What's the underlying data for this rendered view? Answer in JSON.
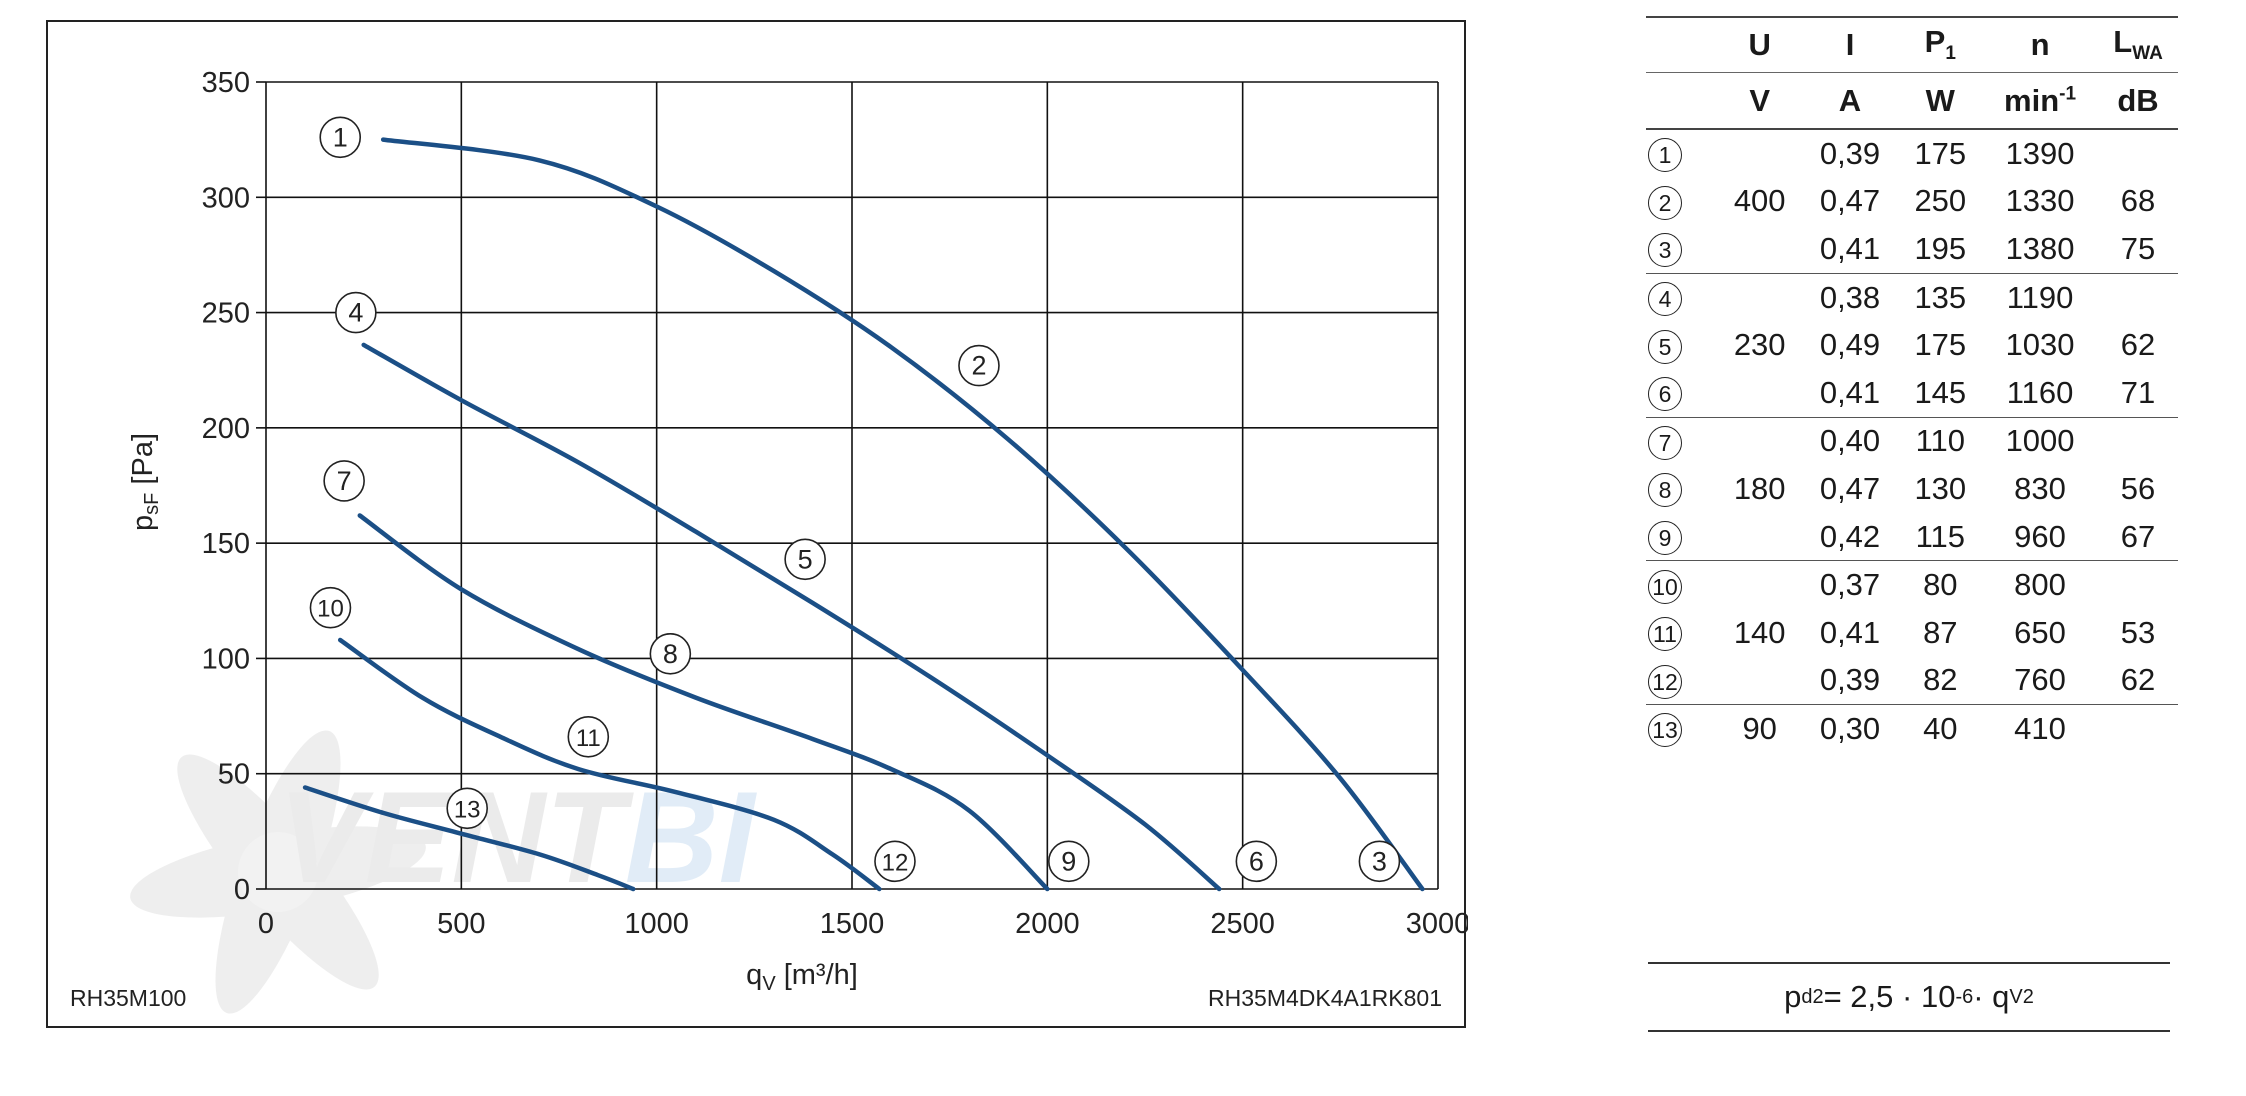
{
  "chart_data": {
    "type": "line",
    "title": "",
    "xlabel": "q",
    "xlabel_sub": "V",
    "xlabel_unit": " [m³/h]",
    "ylabel": "p",
    "ylabel_sub": "sF",
    "ylabel_unit": " [Pa]",
    "xlim": [
      0,
      3000
    ],
    "ylim": [
      0,
      350
    ],
    "x_ticks": [
      0,
      500,
      1000,
      1500,
      2000,
      2500,
      3000
    ],
    "y_ticks": [
      0,
      50,
      100,
      150,
      200,
      250,
      300,
      350
    ],
    "grid": true,
    "line_color": "#1b4f86",
    "series": [
      {
        "points": [
          [
            300,
            325
          ],
          [
            700,
            316
          ],
          [
            1000,
            296
          ],
          [
            1300,
            268
          ],
          [
            1600,
            235
          ],
          [
            1900,
            195
          ],
          [
            2200,
            148
          ],
          [
            2500,
            95
          ],
          [
            2750,
            48
          ],
          [
            2960,
            0
          ]
        ]
      },
      {
        "points": [
          [
            250,
            236
          ],
          [
            500,
            212
          ],
          [
            800,
            185
          ],
          [
            1100,
            155
          ],
          [
            1400,
            124
          ],
          [
            1700,
            92
          ],
          [
            2000,
            58
          ],
          [
            2250,
            28
          ],
          [
            2440,
            0
          ]
        ]
      },
      {
        "points": [
          [
            240,
            162
          ],
          [
            500,
            130
          ],
          [
            800,
            104
          ],
          [
            1100,
            83
          ],
          [
            1400,
            65
          ],
          [
            1600,
            52
          ],
          [
            1800,
            34
          ],
          [
            2000,
            0
          ]
        ]
      },
      {
        "points": [
          [
            190,
            108
          ],
          [
            400,
            83
          ],
          [
            600,
            66
          ],
          [
            800,
            52
          ],
          [
            1050,
            42
          ],
          [
            1300,
            30
          ],
          [
            1450,
            15
          ],
          [
            1570,
            0
          ]
        ]
      },
      {
        "points": [
          [
            100,
            44
          ],
          [
            300,
            33
          ],
          [
            500,
            24
          ],
          [
            700,
            15
          ],
          [
            850,
            6
          ],
          [
            940,
            0
          ]
        ]
      }
    ],
    "curve_labels": [
      {
        "text": "1",
        "x": 190,
        "y": 326
      },
      {
        "text": "2",
        "x": 1825,
        "y": 227
      },
      {
        "text": "3",
        "x": 2850,
        "y": 12
      },
      {
        "text": "4",
        "x": 230,
        "y": 250
      },
      {
        "text": "5",
        "x": 1380,
        "y": 143
      },
      {
        "text": "6",
        "x": 2535,
        "y": 12
      },
      {
        "text": "7",
        "x": 200,
        "y": 177
      },
      {
        "text": "8",
        "x": 1035,
        "y": 102
      },
      {
        "text": "9",
        "x": 2055,
        "y": 12
      },
      {
        "text": "10",
        "x": 165,
        "y": 122
      },
      {
        "text": "11",
        "x": 825,
        "y": 66
      },
      {
        "text": "12",
        "x": 1610,
        "y": 12
      },
      {
        "text": "13",
        "x": 515,
        "y": 35
      }
    ]
  },
  "chart_footer": {
    "left_model": "RH35M100",
    "right_model": "RH35M4DK4A1RK801"
  },
  "table": {
    "headers": [
      {
        "sym": "U",
        "sub": "",
        "sup": "",
        "unit": "V",
        "unit_sup": ""
      },
      {
        "sym": "I",
        "sub": "",
        "sup": "",
        "unit": "A",
        "unit_sup": ""
      },
      {
        "sym": "P",
        "sub": "1",
        "sup": "",
        "unit": "W",
        "unit_sup": ""
      },
      {
        "sym": "n",
        "sub": "",
        "sup": "",
        "unit": "min",
        "unit_sup": "-1"
      },
      {
        "sym": "L",
        "sub": "WA",
        "sup": "",
        "unit": "dB",
        "unit_sup": ""
      }
    ],
    "groups": [
      {
        "voltage": "400",
        "rows": [
          {
            "num": "1",
            "I": "0,39",
            "P": "175",
            "n": "1390",
            "L": ""
          },
          {
            "num": "2",
            "I": "0,47",
            "P": "250",
            "n": "1330",
            "L": "68"
          },
          {
            "num": "3",
            "I": "0,41",
            "P": "195",
            "n": "1380",
            "L": "75"
          }
        ]
      },
      {
        "voltage": "230",
        "rows": [
          {
            "num": "4",
            "I": "0,38",
            "P": "135",
            "n": "1190",
            "L": ""
          },
          {
            "num": "5",
            "I": "0,49",
            "P": "175",
            "n": "1030",
            "L": "62"
          },
          {
            "num": "6",
            "I": "0,41",
            "P": "145",
            "n": "1160",
            "L": "71"
          }
        ]
      },
      {
        "voltage": "180",
        "rows": [
          {
            "num": "7",
            "I": "0,40",
            "P": "110",
            "n": "1000",
            "L": ""
          },
          {
            "num": "8",
            "I": "0,47",
            "P": "130",
            "n": "830",
            "L": "56"
          },
          {
            "num": "9",
            "I": "0,42",
            "P": "115",
            "n": "960",
            "L": "67"
          }
        ]
      },
      {
        "voltage": "140",
        "rows": [
          {
            "num": "10",
            "I": "0,37",
            "P": "80",
            "n": "800",
            "L": ""
          },
          {
            "num": "11",
            "I": "0,41",
            "P": "87",
            "n": "650",
            "L": "53"
          },
          {
            "num": "12",
            "I": "0,39",
            "P": "82",
            "n": "760",
            "L": "62"
          }
        ]
      },
      {
        "voltage": "90",
        "rows": [
          {
            "num": "13",
            "I": "0,30",
            "P": "40",
            "n": "410",
            "L": ""
          }
        ]
      }
    ]
  },
  "formula": {
    "lhs": "p",
    "lhs_sub": "d2",
    "middle": " = 2,5 · 10",
    "exp": "-6",
    "dot": " · q",
    "q_sub": "V",
    "q_sup": "2"
  }
}
